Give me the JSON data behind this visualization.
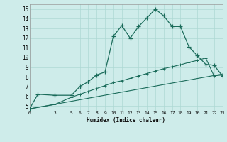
{
  "xlabel": "Humidex (Indice chaleur)",
  "bg_color": "#ceecea",
  "line_color": "#1a6b5a",
  "grid_color": "#aed8d4",
  "xlim": [
    0,
    23
  ],
  "ylim": [
    4.5,
    15.5
  ],
  "yticks": [
    5,
    6,
    7,
    8,
    9,
    10,
    11,
    12,
    13,
    14,
    15
  ],
  "xticks": [
    0,
    3,
    5,
    6,
    7,
    8,
    9,
    10,
    11,
    12,
    13,
    14,
    15,
    16,
    17,
    18,
    19,
    20,
    21,
    22,
    23
  ],
  "line1_x": [
    0,
    1,
    3,
    5,
    6,
    7,
    8,
    9,
    10,
    11,
    12,
    13,
    14,
    15,
    16,
    17,
    18,
    19,
    20,
    21,
    22,
    23
  ],
  "line1_y": [
    4.7,
    6.2,
    6.1,
    6.1,
    7.0,
    7.5,
    8.2,
    8.5,
    12.2,
    13.3,
    12.0,
    13.2,
    14.1,
    15.0,
    14.3,
    13.2,
    13.2,
    11.1,
    10.2,
    9.3,
    9.2,
    8.1
  ],
  "line2_x": [
    0,
    3,
    5,
    6,
    7,
    8,
    9,
    10,
    11,
    12,
    13,
    14,
    15,
    16,
    17,
    18,
    19,
    20,
    21,
    22,
    23
  ],
  "line2_y": [
    4.7,
    5.15,
    5.9,
    6.2,
    6.5,
    6.8,
    7.1,
    7.4,
    7.6,
    7.85,
    8.1,
    8.35,
    8.6,
    8.85,
    9.05,
    9.25,
    9.5,
    9.7,
    9.95,
    8.1,
    8.2
  ],
  "line3_x": [
    0,
    23
  ],
  "line3_y": [
    4.7,
    8.3
  ]
}
